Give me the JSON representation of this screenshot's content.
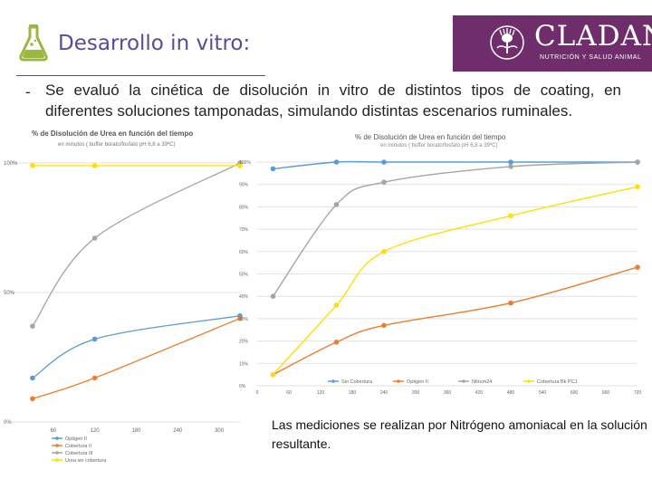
{
  "header": {
    "title": "Desarrollo in vitro:",
    "brand_name": "CLADAN",
    "brand_tagline": "NUTRICIÓN Y SALUD ANIMAL",
    "flask_icon": "flask-icon",
    "brand_icon": "thistle-logo-icon",
    "colors": {
      "title": "#5a4a9a",
      "brand_bg": "#6f2d6b",
      "flask": "#9ab83e"
    }
  },
  "body": {
    "bullet": "-",
    "text": "Se evaluó la cinética de disolución in vitro de distintos tipos de coating, en diferentes soluciones tamponadas, simulando distintas escenarios ruminales.",
    "note": "Las mediciones se realizan por Nitrógeno amoniacal en la solución resultante."
  },
  "chart_data": [
    {
      "type": "line",
      "title": "% de Disolución de Urea en función del tiempo",
      "subtitle": "en minutos ( buffer borato/fosfato pH 6,8 a 39ºC)",
      "y_ticks": [
        "0%",
        "50%",
        "100%"
      ],
      "x_ticks": [
        "60",
        "120",
        "180",
        "240",
        "300"
      ],
      "ylim": [
        0,
        100
      ],
      "xlim": [
        0,
        330
      ],
      "legend_position": "bottom-left",
      "series": [
        {
          "name": "Optigen II",
          "color": "#5b9bd5",
          "x": [
            30,
            120,
            330
          ],
          "y": [
            17,
            32,
            41
          ]
        },
        {
          "name": "Cobertura II",
          "color": "#ed7d31",
          "x": [
            30,
            120,
            330
          ],
          "y": [
            9,
            17,
            40
          ]
        },
        {
          "name": "Cobertura III",
          "color": "#a5a5a5",
          "x": [
            30,
            120,
            330
          ],
          "y": [
            37,
            71,
            100
          ]
        },
        {
          "name": "Urea sin cobertura",
          "color": "#ffe000",
          "x": [
            30,
            120,
            330
          ],
          "y": [
            99,
            99,
            99
          ]
        }
      ]
    },
    {
      "type": "line",
      "title": "% de Disolución de Urea en función del tiempo",
      "subtitle": "en minutos ( buffer borato/fosfato pH 6,8 a 39ºC)",
      "y_ticks": [
        "0%",
        "10%",
        "20%",
        "30%",
        "40%",
        "50%",
        "60%",
        "70%",
        "80%",
        "90%",
        "100%"
      ],
      "x_ticks": [
        "0",
        "60",
        "120",
        "180",
        "240",
        "300",
        "360",
        "420",
        "480",
        "540",
        "600",
        "660",
        "720"
      ],
      "ylim": [
        0,
        100
      ],
      "xlim": [
        0,
        720
      ],
      "legend_position": "bottom",
      "series": [
        {
          "name": "Sin Cobertura",
          "color": "#5b9bd5",
          "x": [
            30,
            150,
            240,
            480,
            720
          ],
          "y": [
            97,
            100,
            100,
            100,
            100
          ]
        },
        {
          "name": "Optigen II",
          "color": "#ed7d31",
          "x": [
            30,
            150,
            240,
            480,
            720
          ],
          "y": [
            5,
            19.5,
            27,
            37,
            53
          ]
        },
        {
          "name": "Nitrum24",
          "color": "#a5a5a5",
          "x": [
            30,
            150,
            240,
            480,
            720
          ],
          "y": [
            40,
            81,
            91,
            98,
            100
          ]
        },
        {
          "name": "Cobertura Bk PC1",
          "color": "#ffe000",
          "x": [
            30,
            150,
            240,
            480,
            720
          ],
          "y": [
            5,
            36,
            60,
            76,
            89
          ]
        }
      ]
    }
  ]
}
